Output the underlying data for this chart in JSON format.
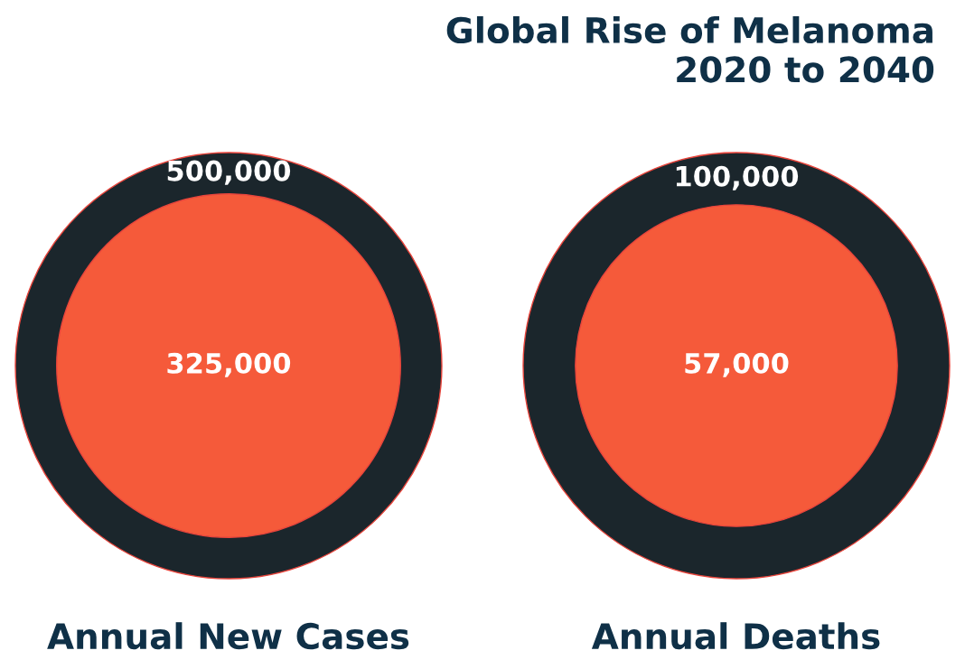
{
  "chart_data": {
    "type": "other",
    "title": "Global Rise of Melanoma\n2020 to 2040",
    "categories": [
      "Annual New Cases",
      "Annual Deaths"
    ],
    "series": [
      {
        "color": "#1b262c",
        "values": [
          500000,
          100000
        ],
        "value_labels": [
          "500,000",
          "100,000"
        ]
      },
      {
        "color": "#f55a3a",
        "values": [
          325000,
          57000
        ],
        "value_labels": [
          "325,000",
          "57,000"
        ]
      }
    ]
  }
}
